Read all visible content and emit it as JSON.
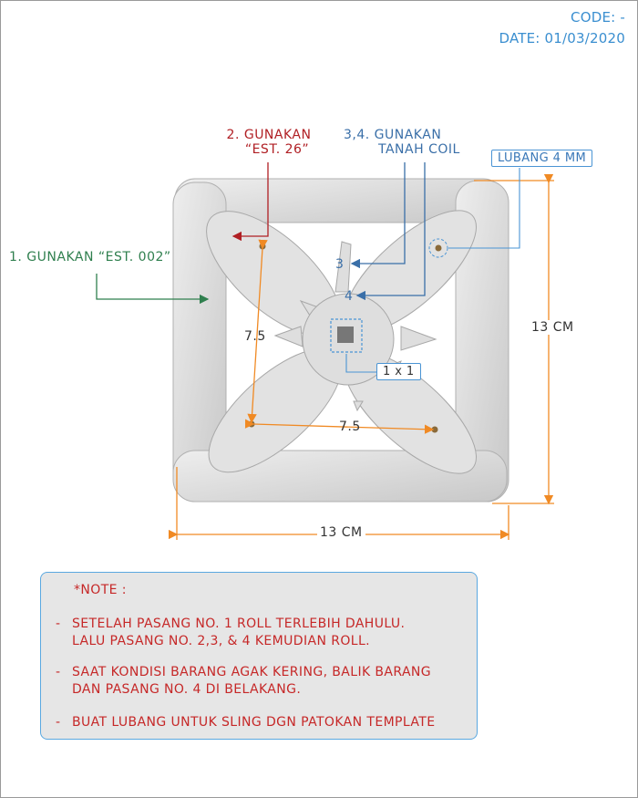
{
  "header": {
    "code_label": "CODE:",
    "code_value": "-",
    "date_label": "DATE:",
    "date_value": "01/03/2020"
  },
  "callouts": {
    "part1": "1. GUNAKAN “EST. 002”",
    "part2_line1": "2. GUNAKAN",
    "part2_line2": "“EST. 26”",
    "part34_line1": "3,4. GUNAKAN",
    "part34_line2": "TANAH COIL",
    "hole": "LUBANG 4 MM",
    "marker3": "3",
    "marker4": "4",
    "center_size": "1 x 1"
  },
  "dimensions": {
    "width": "13 CM",
    "height": "13 CM",
    "hole_vertical": "7.5",
    "hole_horizontal": "7.5"
  },
  "note": {
    "title": "*NOTE :",
    "items": [
      "SETELAH PASANG NO. 1  ROLL  TERLEBIH DAHULU.\nLALU  PASANG  NO. 2,3, & 4 KEMUDIAN ROLL.",
      "SAAT KONDISI BARANG AGAK KERING, BALIK BARANG\nDAN PASANG NO. 4 DI BELAKANG.",
      "BUAT LUBANG UNTUK SLING DGN PATOKAN TEMPLATE"
    ]
  },
  "colors": {
    "dimension": "#f08a24",
    "green": "#2f7f4e",
    "red": "#b01f24",
    "blue": "#3a6fa8",
    "light_blue": "#4a94d4",
    "note_text": "#c62828",
    "clay": "#dcdcdc"
  }
}
